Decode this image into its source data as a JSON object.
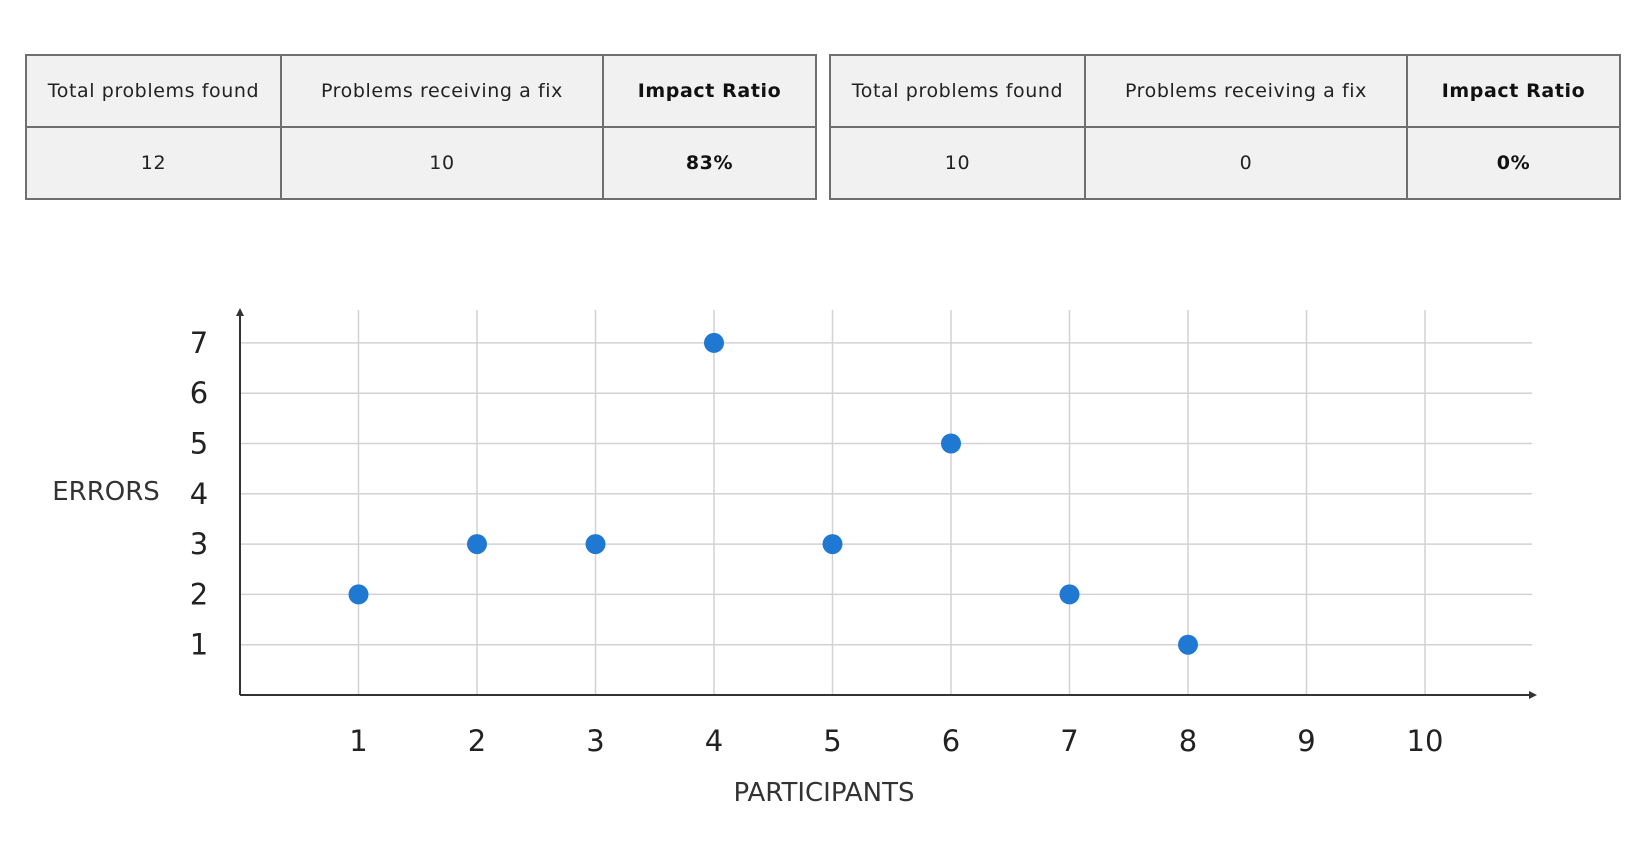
{
  "tables": [
    {
      "headers": [
        "Total problems found",
        "Problems receiving a fix",
        "Impact Ratio"
      ],
      "values": [
        "12",
        "10",
        "83%"
      ]
    },
    {
      "headers": [
        "Total problems found",
        "Problems receiving a fix",
        "Impact Ratio"
      ],
      "values": [
        "10",
        "0",
        "0%"
      ]
    }
  ],
  "chart_data": {
    "type": "scatter",
    "title": "",
    "xlabel": "PARTICIPANTS",
    "ylabel": "ERRORS",
    "x_ticks": [
      "1",
      "2",
      "3",
      "4",
      "5",
      "6",
      "7",
      "8",
      "9",
      "10"
    ],
    "y_ticks": [
      "1",
      "2",
      "3",
      "4",
      "5",
      "6",
      "7"
    ],
    "xlim": [
      0,
      11
    ],
    "ylim": [
      0,
      7.6
    ],
    "grid": true,
    "point_color": "#1f78d1",
    "points": [
      {
        "x": 1,
        "y": 2
      },
      {
        "x": 2,
        "y": 3
      },
      {
        "x": 3,
        "y": 3
      },
      {
        "x": 4,
        "y": 7
      },
      {
        "x": 5,
        "y": 3
      },
      {
        "x": 6,
        "y": 5
      },
      {
        "x": 7,
        "y": 2
      },
      {
        "x": 8,
        "y": 1
      }
    ]
  }
}
